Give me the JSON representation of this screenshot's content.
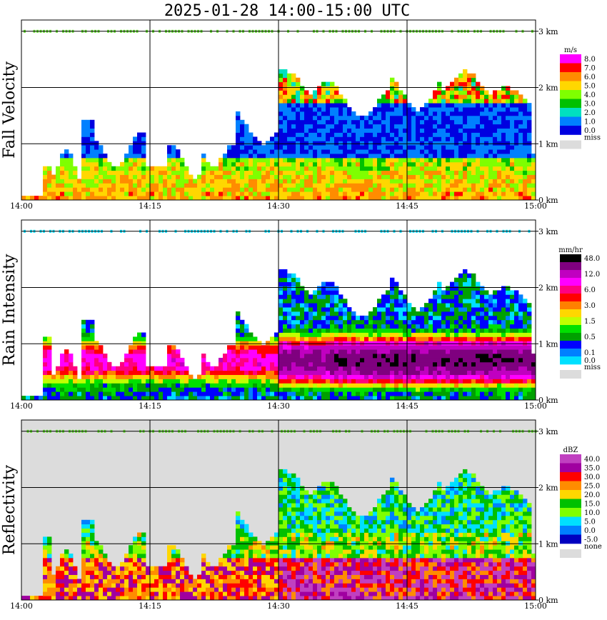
{
  "chart_data": {
    "title": "2025-01-28  14:00-15:00 UTC",
    "type": "heatmap",
    "x_ticks": [
      "14:00",
      "14:15",
      "14:30",
      "14:45",
      "15:00"
    ],
    "y_ticks": [
      "0 km",
      "1 km",
      "2 km",
      "3 km"
    ],
    "xlim": [
      "14:00",
      "15:00"
    ],
    "ylim_km": [
      0,
      3.2
    ],
    "grid": true,
    "panels": [
      {
        "name": "fall_velocity",
        "ylabel": "Fall Velocity",
        "unit": "m/s",
        "background": "#ffffff",
        "colorbar": {
          "labels": [
            "8.0",
            "7.0",
            "6.0",
            "5.0",
            "4.0",
            "3.0",
            "2.0",
            "1.0",
            "0.0"
          ],
          "colors": [
            "#ff00ff",
            "#ff0000",
            "#ff8c00",
            "#ffd700",
            "#7fff00",
            "#00c000",
            "#00e0c0",
            "#0080ff",
            "#0000e0"
          ],
          "missing_label": "miss",
          "missing_color": "#dcdcdc"
        }
      },
      {
        "name": "rain_intensity",
        "ylabel": "Rain Intensity",
        "unit": "mm/hr",
        "background": "#ffffff",
        "colorbar": {
          "labels": [
            "48.0",
            "",
            "12.0",
            "",
            "6.0",
            "",
            "3.0",
            "",
            "1.5",
            "",
            "0.5",
            "",
            "0.1",
            "0.0"
          ],
          "colors": [
            "#000000",
            "#7f007f",
            "#c000c0",
            "#ff00ff",
            "#ff0080",
            "#ff0000",
            "#ff8000",
            "#ffd700",
            "#c0ff00",
            "#00e000",
            "#00a000",
            "#0000ff",
            "#0080ff",
            "#00e0ff"
          ],
          "missing_label": "miss",
          "missing_color": "#dcdcdc"
        }
      },
      {
        "name": "reflectivity",
        "ylabel": "Reflectivity",
        "unit": "dBZ",
        "background": "#dcdcdc",
        "colorbar": {
          "labels": [
            "40.0",
            "35.0",
            "30.0",
            "25.0",
            "20.0",
            "15.0",
            "10.0",
            "5.0",
            "0.0",
            "-5.0"
          ],
          "colors": [
            "#c040c0",
            "#a000a0",
            "#ff0000",
            "#ff8c00",
            "#ffd700",
            "#00c000",
            "#7fff00",
            "#00e0ff",
            "#0080ff",
            "#0000c0"
          ],
          "missing_label": "none",
          "missing_color": "#dcdcdc"
        }
      }
    ]
  }
}
